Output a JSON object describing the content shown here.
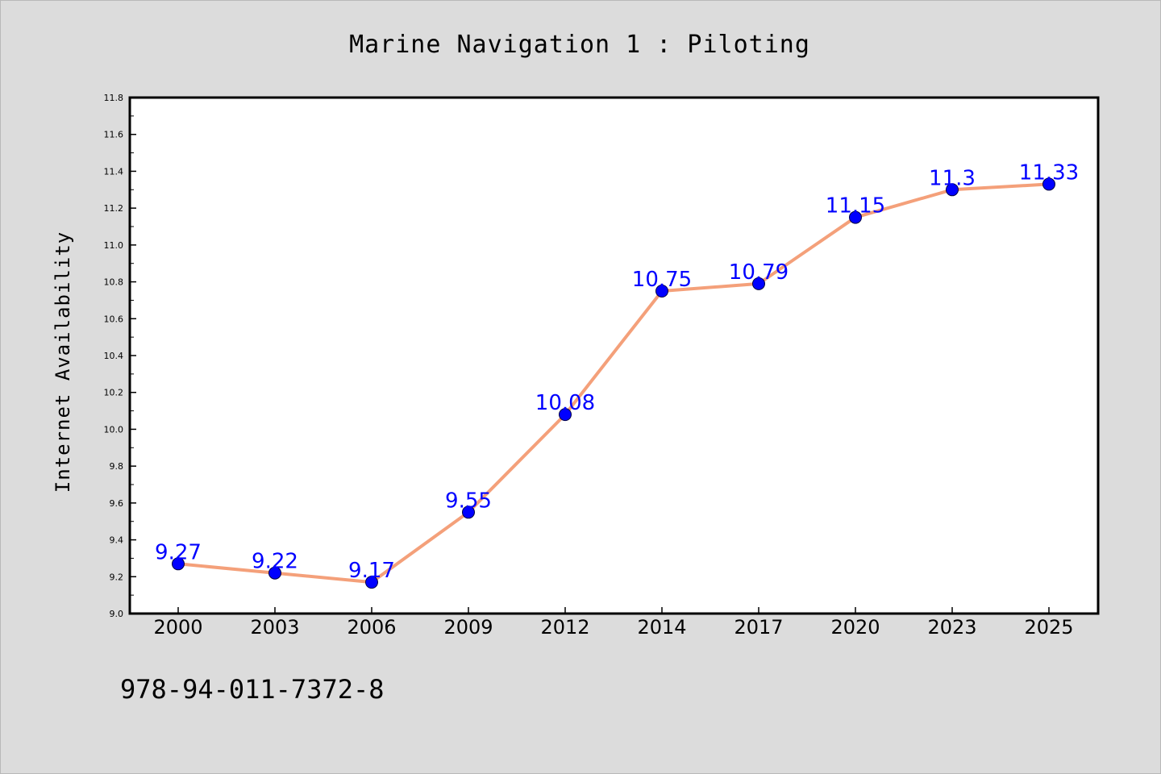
{
  "chart_data": {
    "type": "line",
    "title": "Marine Navigation 1 : Piloting",
    "xlabel": "",
    "ylabel": "Internet Availability",
    "categories": [
      "2000",
      "2003",
      "2006",
      "2009",
      "2012",
      "2014",
      "2017",
      "2020",
      "2023",
      "2025"
    ],
    "series": [
      {
        "values": [
          9.27,
          9.22,
          9.17,
          9.55,
          10.08,
          10.75,
          10.79,
          11.15,
          11.3,
          11.33
        ],
        "data_labels": [
          "9.27",
          "9.22",
          "9.17",
          "9.55",
          "10.08",
          "10.75",
          "10.79",
          "11.15",
          "11.3",
          "11.33"
        ],
        "line_color": "#f4a07a",
        "marker_color": "#0000ff"
      }
    ],
    "ylim": [
      9.0,
      11.8
    ],
    "yticks": [
      "9.0",
      "9.2",
      "9.4",
      "9.6",
      "9.8",
      "10.0",
      "10.2",
      "10.4",
      "10.6",
      "10.8",
      "11.0",
      "11.2",
      "11.4",
      "11.6",
      "11.8"
    ],
    "grid": false,
    "legend": "none"
  },
  "footer": {
    "isbn": "978-94-011-7372-8"
  },
  "colors": {
    "background": "#dcdcdc",
    "plot_background": "#ffffff",
    "label_color": "#0000ff"
  }
}
